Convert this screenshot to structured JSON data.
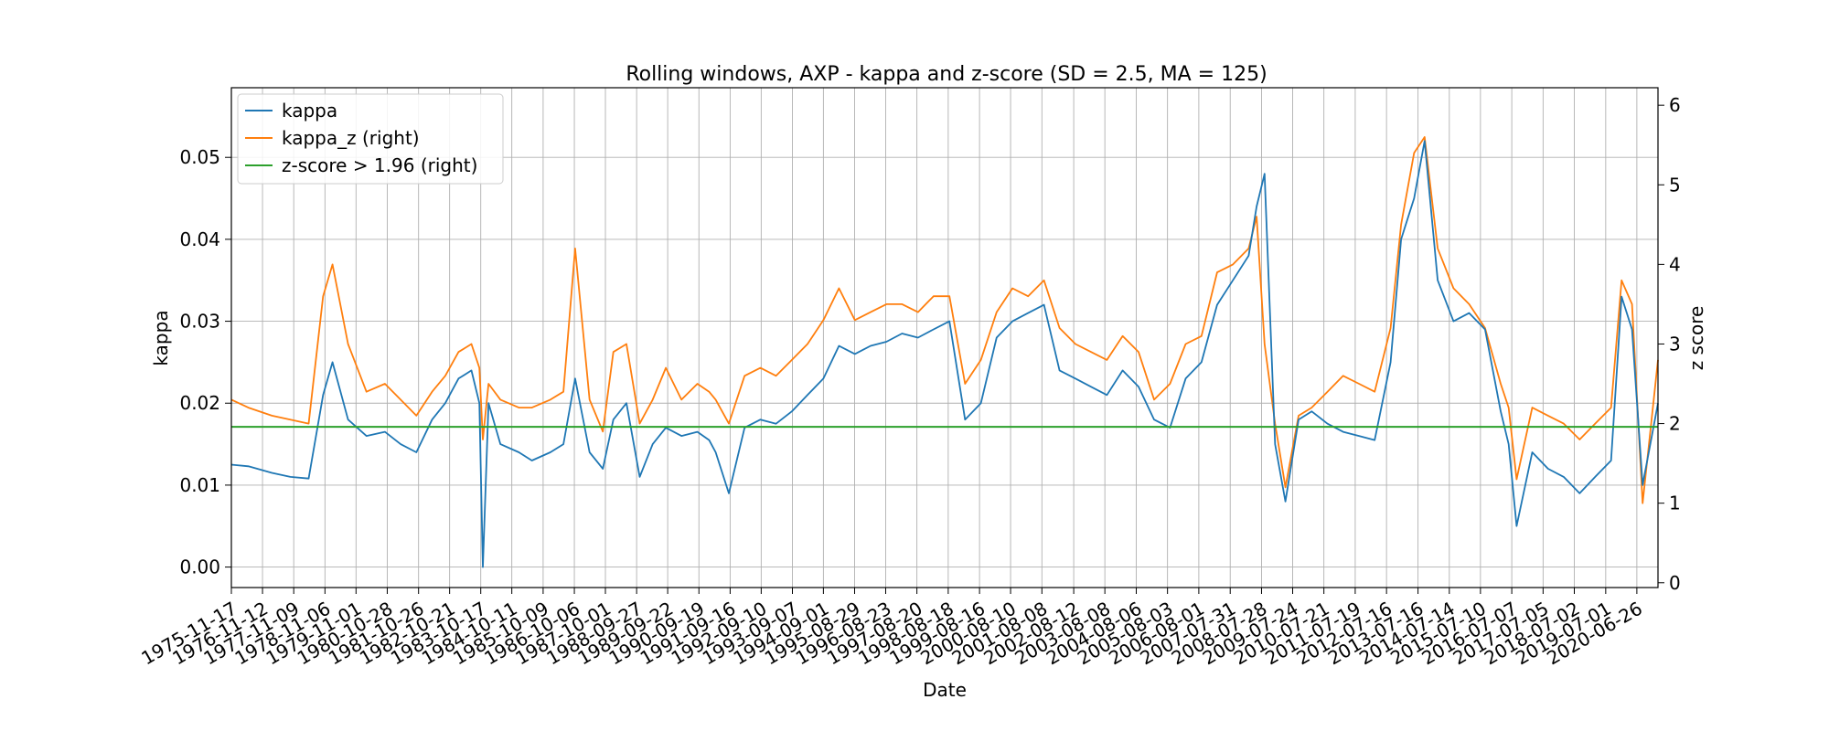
{
  "chart_data": {
    "type": "line",
    "title": "Rolling windows, AXP - kappa and z-score (SD = 2.5, MA = 125)",
    "xlabel": "Date",
    "ylabel_left": "kappa",
    "ylabel_right": "z score",
    "x_range": [
      "1975-11-17",
      "2021-02-26"
    ],
    "ylim_left": [
      -0.0025,
      0.0585
    ],
    "ylim_right": [
      -0.06,
      6.22
    ],
    "left_ticks": [
      "0.00",
      "0.01",
      "0.02",
      "0.03",
      "0.04",
      "0.05"
    ],
    "left_tick_values": [
      0.0,
      0.01,
      0.02,
      0.03,
      0.04,
      0.05
    ],
    "right_ticks": [
      "0",
      "1",
      "2",
      "3",
      "4",
      "5",
      "6"
    ],
    "right_tick_values": [
      0,
      1,
      2,
      3,
      4,
      5,
      6
    ],
    "x_tick_labels": [
      "1975-11-17",
      "1976-11-12",
      "1977-11-09",
      "1978-11-06",
      "1979-11-01",
      "1980-10-28",
      "1981-10-26",
      "1982-10-21",
      "1983-10-17",
      "1984-10-11",
      "1985-10-09",
      "1986-10-06",
      "1987-10-01",
      "1988-09-27",
      "1989-09-22",
      "1990-09-19",
      "1991-09-16",
      "1992-09-10",
      "1993-09-07",
      "1994-09-01",
      "1995-08-29",
      "1996-08-23",
      "1997-08-20",
      "1998-08-18",
      "1999-08-16",
      "2000-08-10",
      "2001-08-08",
      "2002-08-12",
      "2003-08-08",
      "2004-08-06",
      "2005-08-03",
      "2006-08-01",
      "2007-07-31",
      "2008-07-28",
      "2009-07-24",
      "2010-07-21",
      "2011-07-19",
      "2012-07-16",
      "2013-07-16",
      "2014-07-14",
      "2015-07-10",
      "2016-07-07",
      "2017-07-05",
      "2018-07-02",
      "2019-07-01",
      "2020-06-26"
    ],
    "grid": true,
    "legend_position": "top-left",
    "colors": {
      "kappa": "#1f77b4",
      "kappa_z": "#ff7f0e",
      "threshold": "#2ca02c"
    },
    "series": [
      {
        "name": "kappa",
        "axis": "left",
        "x": [
          "1975-11-17",
          "1976-06-01",
          "1977-03-01",
          "1977-10-01",
          "1978-05-01",
          "1978-10-15",
          "1979-02-01",
          "1979-08-01",
          "1980-03-01",
          "1980-10-01",
          "1981-04-01",
          "1981-10-01",
          "1982-04-01",
          "1982-09-01",
          "1983-02-01",
          "1983-07-01",
          "1983-10-01",
          "1983-11-10",
          "1984-01-15",
          "1984-06-01",
          "1985-01-01",
          "1985-06-01",
          "1986-01-01",
          "1986-06-01",
          "1986-10-15",
          "1987-04-01",
          "1987-09-01",
          "1988-01-01",
          "1988-06-01",
          "1988-11-01",
          "1989-04-01",
          "1989-09-01",
          "1990-03-01",
          "1990-09-01",
          "1991-01-15",
          "1991-04-01",
          "1991-09-01",
          "1992-03-01",
          "1992-09-01",
          "1993-03-01",
          "1993-09-01",
          "1994-03-01",
          "1994-09-01",
          "1995-03-01",
          "1995-09-01",
          "1996-03-01",
          "1996-09-01",
          "1997-03-01",
          "1997-09-01",
          "1998-03-01",
          "1998-09-01",
          "1999-03-01",
          "1999-09-01",
          "2000-03-01",
          "2000-09-01",
          "2001-03-01",
          "2001-09-01",
          "2002-03-01",
          "2002-09-01",
          "2003-03-01",
          "2003-09-01",
          "2004-03-01",
          "2004-09-01",
          "2005-03-01",
          "2005-09-01",
          "2006-03-01",
          "2006-09-01",
          "2007-03-01",
          "2007-09-01",
          "2008-03-01",
          "2008-06-01",
          "2008-09-01",
          "2009-01-01",
          "2009-05-01",
          "2009-10-01",
          "2010-03-01",
          "2010-09-01",
          "2011-03-01",
          "2011-09-01",
          "2012-03-01",
          "2012-09-01",
          "2013-01-01",
          "2013-06-01",
          "2013-10-01",
          "2014-03-01",
          "2014-09-01",
          "2015-03-01",
          "2015-09-01",
          "2016-03-01",
          "2016-06-01",
          "2016-09-01",
          "2017-03-01",
          "2017-09-01",
          "2018-03-01",
          "2018-09-01",
          "2019-03-01",
          "2019-09-01",
          "2020-01-01",
          "2020-05-01",
          "2020-09-01",
          "2021-02-26"
        ],
        "values": [
          0.0125,
          0.0123,
          0.0115,
          0.011,
          0.0108,
          0.021,
          0.025,
          0.018,
          0.016,
          0.0165,
          0.015,
          0.014,
          0.018,
          0.02,
          0.023,
          0.024,
          0.02,
          0.0,
          0.02,
          0.015,
          0.014,
          0.013,
          0.014,
          0.015,
          0.023,
          0.014,
          0.012,
          0.018,
          0.02,
          0.011,
          0.015,
          0.017,
          0.016,
          0.0165,
          0.0155,
          0.014,
          0.009,
          0.017,
          0.018,
          0.0175,
          0.019,
          0.021,
          0.023,
          0.027,
          0.026,
          0.027,
          0.0275,
          0.0285,
          0.028,
          0.029,
          0.03,
          0.018,
          0.02,
          0.028,
          0.03,
          0.031,
          0.032,
          0.024,
          0.023,
          0.022,
          0.021,
          0.024,
          0.022,
          0.018,
          0.017,
          0.023,
          0.025,
          0.032,
          0.035,
          0.038,
          0.044,
          0.048,
          0.015,
          0.008,
          0.018,
          0.019,
          0.0175,
          0.0165,
          0.016,
          0.0155,
          0.025,
          0.04,
          0.045,
          0.052,
          0.035,
          0.03,
          0.031,
          0.029,
          0.019,
          0.015,
          0.005,
          0.014,
          0.012,
          0.011,
          0.009,
          0.011,
          0.013,
          0.033,
          0.029,
          0.01,
          0.02
        ]
      },
      {
        "name": "kappa_z (right)",
        "axis": "right",
        "x": [
          "1975-11-17",
          "1976-06-01",
          "1977-03-01",
          "1977-10-01",
          "1978-05-01",
          "1978-10-15",
          "1979-02-01",
          "1979-08-01",
          "1980-03-01",
          "1980-10-01",
          "1981-04-01",
          "1981-10-01",
          "1982-04-01",
          "1982-09-01",
          "1983-02-01",
          "1983-07-01",
          "1983-10-01",
          "1983-11-10",
          "1984-01-15",
          "1984-06-01",
          "1985-01-01",
          "1985-06-01",
          "1986-01-01",
          "1986-06-01",
          "1986-10-15",
          "1987-04-01",
          "1987-09-01",
          "1988-01-01",
          "1988-06-01",
          "1988-11-01",
          "1989-04-01",
          "1989-09-01",
          "1990-03-01",
          "1990-09-01",
          "1991-01-15",
          "1991-04-01",
          "1991-09-01",
          "1992-03-01",
          "1992-09-01",
          "1993-03-01",
          "1993-09-01",
          "1994-03-01",
          "1994-09-01",
          "1995-03-01",
          "1995-09-01",
          "1996-03-01",
          "1996-09-01",
          "1997-03-01",
          "1997-09-01",
          "1998-03-01",
          "1998-09-01",
          "1999-03-01",
          "1999-09-01",
          "2000-03-01",
          "2000-09-01",
          "2001-03-01",
          "2001-09-01",
          "2002-03-01",
          "2002-09-01",
          "2003-03-01",
          "2003-09-01",
          "2004-03-01",
          "2004-09-01",
          "2005-03-01",
          "2005-09-01",
          "2006-03-01",
          "2006-09-01",
          "2007-03-01",
          "2007-09-01",
          "2008-03-01",
          "2008-06-01",
          "2008-09-01",
          "2009-01-01",
          "2009-05-01",
          "2009-10-01",
          "2010-03-01",
          "2010-09-01",
          "2011-03-01",
          "2011-09-01",
          "2012-03-01",
          "2012-09-01",
          "2013-01-01",
          "2013-06-01",
          "2013-10-01",
          "2014-03-01",
          "2014-09-01",
          "2015-03-01",
          "2015-09-01",
          "2016-03-01",
          "2016-06-01",
          "2016-09-01",
          "2017-03-01",
          "2017-09-01",
          "2018-03-01",
          "2018-09-01",
          "2019-03-01",
          "2019-09-01",
          "2020-01-01",
          "2020-05-01",
          "2020-09-01",
          "2021-02-26"
        ],
        "values": [
          2.3,
          2.2,
          2.1,
          2.05,
          2.0,
          3.6,
          4.0,
          3.0,
          2.4,
          2.5,
          2.3,
          2.1,
          2.4,
          2.6,
          2.9,
          3.0,
          2.7,
          1.8,
          2.5,
          2.3,
          2.2,
          2.2,
          2.3,
          2.4,
          4.2,
          2.3,
          1.9,
          2.9,
          3.0,
          2.0,
          2.3,
          2.7,
          2.3,
          2.5,
          2.4,
          2.3,
          2.0,
          2.6,
          2.7,
          2.6,
          2.8,
          3.0,
          3.3,
          3.7,
          3.3,
          3.4,
          3.5,
          3.5,
          3.4,
          3.6,
          3.6,
          2.5,
          2.8,
          3.4,
          3.7,
          3.6,
          3.8,
          3.2,
          3.0,
          2.9,
          2.8,
          3.1,
          2.9,
          2.3,
          2.5,
          3.0,
          3.1,
          3.9,
          4.0,
          4.2,
          4.6,
          3.0,
          2.0,
          1.2,
          2.1,
          2.2,
          2.4,
          2.6,
          2.5,
          2.4,
          3.2,
          4.5,
          5.4,
          5.6,
          4.2,
          3.7,
          3.5,
          3.2,
          2.5,
          2.2,
          1.3,
          2.2,
          2.1,
          2.0,
          1.8,
          2.0,
          2.2,
          3.8,
          3.5,
          1.0,
          2.8
        ]
      },
      {
        "name": "z-score > 1.96 (right)",
        "axis": "right",
        "x": [
          "1975-11-17",
          "2021-02-26"
        ],
        "values": [
          1.96,
          1.96
        ]
      }
    ]
  }
}
